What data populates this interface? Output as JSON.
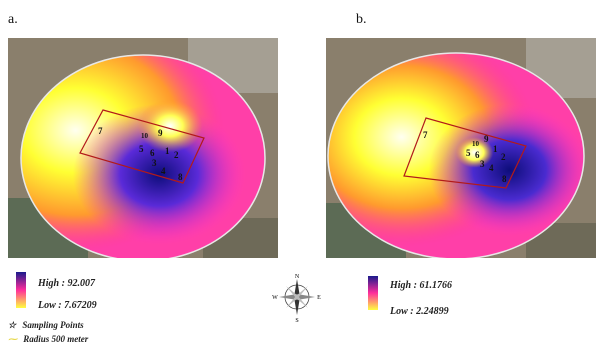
{
  "panels": [
    {
      "label": "a.",
      "legend": {
        "high": "High : 92.007",
        "low": "Low : 7.67209"
      },
      "points": [
        "1",
        "2",
        "3",
        "4",
        "5",
        "6",
        "7",
        "8",
        "9",
        "10"
      ]
    },
    {
      "label": "b.",
      "legend": {
        "high": "High : 61.1766",
        "low": "Low : 2.24899"
      },
      "points": [
        "1",
        "2",
        "3",
        "4",
        "5",
        "6",
        "7",
        "8",
        "9",
        "10"
      ]
    }
  ],
  "symbols": {
    "sampling": "Sampling Points",
    "radius": "Radius 500 meter"
  },
  "compass": {
    "n": "N",
    "s": "S",
    "e": "E",
    "w": "W"
  },
  "colors": {
    "high": "#1a1a8c",
    "mid": "#ff2d9b",
    "low": "#ffff40"
  }
}
